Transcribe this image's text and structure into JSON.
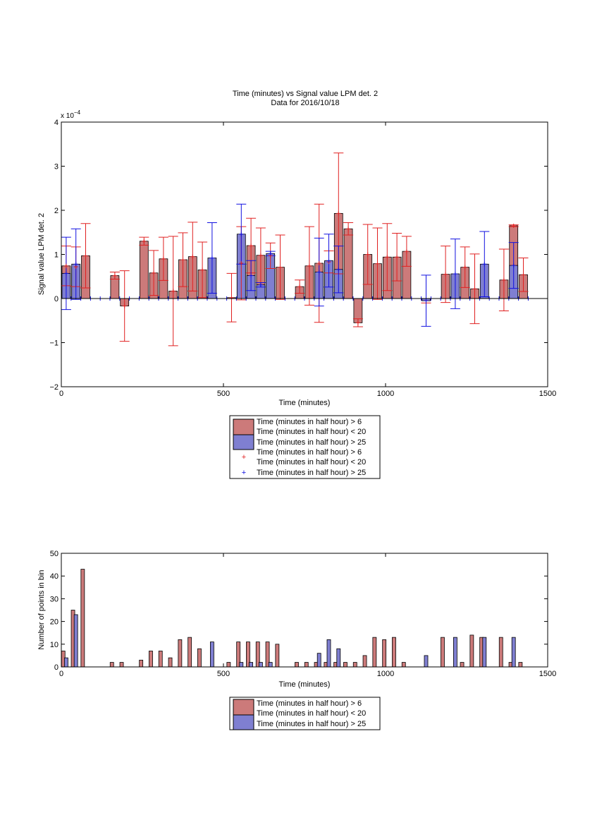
{
  "chart_data": [
    {
      "type": "bar",
      "title": "Time (minutes) vs Signal value LPM det. 2",
      "subtitle": "Data for 2016/10/18",
      "xlabel": "Time (minutes)",
      "ylabel": "Signal value LPM det. 2",
      "xlim": [
        0,
        1500
      ],
      "ylim": [
        -2,
        4
      ],
      "y_exponent_label": "x 10",
      "y_exponent_power": "−4",
      "xticks": [
        "0",
        "500",
        "1000",
        "1500"
      ],
      "yticks": [
        "−2",
        "−1",
        "0",
        "1",
        "2",
        "3",
        "4"
      ],
      "colors": {
        "red_fill": "#cc7a7a",
        "blue_fill": "#7f7fd1",
        "red_err": "#e02020",
        "blue_err": "#1010e0"
      },
      "legend": {
        "placement": "below",
        "entries": [
          "Time (minutes in half hour) > 6",
          "Time (minutes in half hour) < 20",
          "Time (minutes in half hour) > 25",
          "Time (minutes in half hour) > 6",
          "Time (minutes in half hour) < 20",
          "Time (minutes in half hour) > 25"
        ]
      },
      "series": [
        {
          "group": "red",
          "bars": [
            {
              "x": 15,
              "y": 0.74,
              "err": 0.45
            },
            {
              "x": 45,
              "y": 0.72,
              "err": 0.45
            },
            {
              "x": 75,
              "y": 0.97,
              "err": 0.73
            },
            {
              "x": 165,
              "y": 0.52,
              "err": 0.08
            },
            {
              "x": 195,
              "y": -0.17,
              "err": 0.8
            },
            {
              "x": 255,
              "y": 1.3,
              "err": 0.09
            },
            {
              "x": 285,
              "y": 0.58,
              "err": 0.51
            },
            {
              "x": 315,
              "y": 0.9,
              "err": 0.49
            },
            {
              "x": 345,
              "y": 0.17,
              "err": 1.24
            },
            {
              "x": 375,
              "y": 0.88,
              "err": 0.61
            },
            {
              "x": 405,
              "y": 0.95,
              "err": 0.78
            },
            {
              "x": 435,
              "y": 0.65,
              "err": 0.63
            },
            {
              "x": 525,
              "y": 0.02,
              "err": 0.55
            },
            {
              "x": 555,
              "y": 0.8,
              "err": 0.83
            },
            {
              "x": 585,
              "y": 1.2,
              "err": 0.62
            },
            {
              "x": 615,
              "y": 0.98,
              "err": 0.62
            },
            {
              "x": 645,
              "y": 0.97,
              "err": 0.29
            },
            {
              "x": 675,
              "y": 0.71,
              "err": 0.73
            },
            {
              "x": 735,
              "y": 0.27,
              "err": 0.15
            },
            {
              "x": 765,
              "y": 0.74,
              "err": 0.89
            },
            {
              "x": 795,
              "y": 0.8,
              "err": 1.34
            },
            {
              "x": 825,
              "y": 0.83,
              "err": 0.25
            },
            {
              "x": 855,
              "y": 1.93,
              "err": 1.37
            },
            {
              "x": 885,
              "y": 1.58,
              "err": 0.14
            },
            {
              "x": 915,
              "y": -0.55,
              "err": 0.09
            },
            {
              "x": 945,
              "y": 1.0,
              "err": 0.68
            },
            {
              "x": 975,
              "y": 0.79,
              "err": 0.81
            },
            {
              "x": 1005,
              "y": 0.94,
              "err": 0.76
            },
            {
              "x": 1035,
              "y": 0.94,
              "err": 0.54
            },
            {
              "x": 1065,
              "y": 1.07,
              "err": 0.34
            },
            {
              "x": 1125,
              "y": -0.05,
              "err": 0.05
            },
            {
              "x": 1185,
              "y": 0.55,
              "err": 0.64
            },
            {
              "x": 1245,
              "y": 0.71,
              "err": 0.46
            },
            {
              "x": 1275,
              "y": 0.22,
              "err": 0.79
            },
            {
              "x": 1365,
              "y": 0.42,
              "err": 0.7
            },
            {
              "x": 1395,
              "y": 1.65,
              "err": 0.02
            },
            {
              "x": 1425,
              "y": 0.54,
              "err": 0.38
            }
          ]
        },
        {
          "group": "blue",
          "bars": [
            {
              "x": 15,
              "y": 0.57,
              "err": 0.82
            },
            {
              "x": 45,
              "y": 0.78,
              "err": 0.8
            },
            {
              "x": 465,
              "y": 0.92,
              "err": 0.8
            },
            {
              "x": 555,
              "y": 1.46,
              "err": 0.68
            },
            {
              "x": 585,
              "y": 0.52,
              "err": 0.34
            },
            {
              "x": 615,
              "y": 0.31,
              "err": 0.05
            },
            {
              "x": 645,
              "y": 1.02,
              "err": 0.05
            },
            {
              "x": 795,
              "y": 0.6,
              "err": 0.77
            },
            {
              "x": 825,
              "y": 0.86,
              "err": 0.6
            },
            {
              "x": 855,
              "y": 0.66,
              "err": 0.53
            },
            {
              "x": 1125,
              "y": -0.05,
              "err": 0.58
            },
            {
              "x": 1215,
              "y": 0.56,
              "err": 0.79
            },
            {
              "x": 1305,
              "y": 0.78,
              "err": 0.74
            },
            {
              "x": 1395,
              "y": 0.75,
              "err": 0.52
            }
          ]
        }
      ],
      "zero_markers_x": [
        0,
        30,
        60,
        90,
        120,
        150,
        180,
        210,
        240,
        270,
        300,
        330,
        360,
        390,
        420,
        450,
        480,
        510,
        540,
        570,
        600,
        630,
        660,
        690,
        720,
        750,
        780,
        810,
        840,
        870,
        900,
        930,
        960,
        990,
        1020,
        1050,
        1080,
        1110,
        1140,
        1170,
        1200,
        1230,
        1260,
        1290,
        1320,
        1350,
        1380,
        1410,
        1440
      ]
    },
    {
      "type": "bar",
      "title": "",
      "xlabel": "Time (minutes)",
      "ylabel": "Number of points in bin",
      "xlim": [
        0,
        1500
      ],
      "ylim": [
        0,
        50
      ],
      "xticks": [
        "0",
        "500",
        "1000",
        "1500"
      ],
      "yticks": [
        "0",
        "10",
        "20",
        "30",
        "40",
        "50"
      ],
      "legend": {
        "placement": "below",
        "entries": [
          "Time (minutes in half hour) > 6",
          "Time (minutes in half hour) < 20",
          "Time (minutes in half hour) > 25"
        ]
      },
      "series": [
        {
          "group": "red",
          "bars": [
            {
              "x": 6,
              "y": 7
            },
            {
              "x": 36,
              "y": 25
            },
            {
              "x": 66,
              "y": 43
            },
            {
              "x": 156,
              "y": 2
            },
            {
              "x": 186,
              "y": 2
            },
            {
              "x": 246,
              "y": 3
            },
            {
              "x": 276,
              "y": 7
            },
            {
              "x": 306,
              "y": 7
            },
            {
              "x": 336,
              "y": 4
            },
            {
              "x": 366,
              "y": 12
            },
            {
              "x": 396,
              "y": 13
            },
            {
              "x": 426,
              "y": 8
            },
            {
              "x": 516,
              "y": 2
            },
            {
              "x": 546,
              "y": 11
            },
            {
              "x": 576,
              "y": 11
            },
            {
              "x": 606,
              "y": 11
            },
            {
              "x": 636,
              "y": 11
            },
            {
              "x": 666,
              "y": 10
            },
            {
              "x": 726,
              "y": 2
            },
            {
              "x": 756,
              "y": 2
            },
            {
              "x": 786,
              "y": 2
            },
            {
              "x": 816,
              "y": 2
            },
            {
              "x": 846,
              "y": 2
            },
            {
              "x": 876,
              "y": 2
            },
            {
              "x": 906,
              "y": 2
            },
            {
              "x": 936,
              "y": 5
            },
            {
              "x": 966,
              "y": 13
            },
            {
              "x": 996,
              "y": 12
            },
            {
              "x": 1026,
              "y": 13
            },
            {
              "x": 1056,
              "y": 2
            },
            {
              "x": 1176,
              "y": 13
            },
            {
              "x": 1236,
              "y": 2
            },
            {
              "x": 1266,
              "y": 14
            },
            {
              "x": 1296,
              "y": 13
            },
            {
              "x": 1356,
              "y": 13
            },
            {
              "x": 1386,
              "y": 2
            },
            {
              "x": 1416,
              "y": 2
            }
          ]
        },
        {
          "group": "blue",
          "bars": [
            {
              "x": 15,
              "y": 4
            },
            {
              "x": 45,
              "y": 23
            },
            {
              "x": 465,
              "y": 11
            },
            {
              "x": 555,
              "y": 2
            },
            {
              "x": 585,
              "y": 2
            },
            {
              "x": 615,
              "y": 2
            },
            {
              "x": 645,
              "y": 2
            },
            {
              "x": 795,
              "y": 6
            },
            {
              "x": 825,
              "y": 12
            },
            {
              "x": 855,
              "y": 8
            },
            {
              "x": 1125,
              "y": 5
            },
            {
              "x": 1215,
              "y": 13
            },
            {
              "x": 1305,
              "y": 13
            },
            {
              "x": 1395,
              "y": 13
            }
          ]
        }
      ]
    }
  ]
}
